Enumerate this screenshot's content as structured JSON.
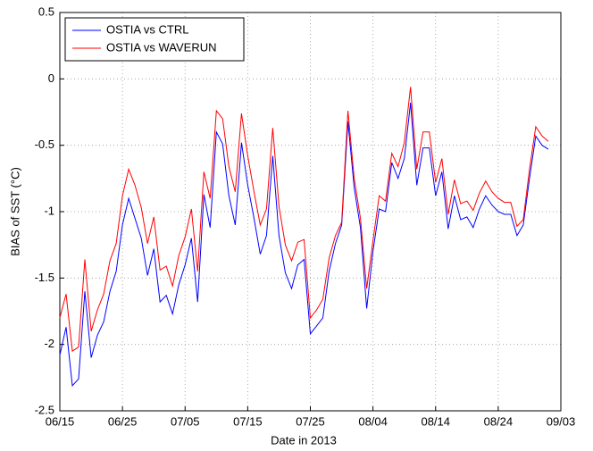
{
  "chart_data": {
    "type": "line",
    "x_label": "Date in 2013",
    "y_label": "BIAS of SST (°C)",
    "x": [
      "06/15",
      "06/16",
      "06/17",
      "06/18",
      "06/19",
      "06/20",
      "06/21",
      "06/22",
      "06/23",
      "06/24",
      "06/25",
      "06/26",
      "06/27",
      "06/28",
      "06/29",
      "06/30",
      "07/01",
      "07/02",
      "07/03",
      "07/04",
      "07/05",
      "07/06",
      "07/07",
      "07/08",
      "07/09",
      "07/10",
      "07/11",
      "07/12",
      "07/13",
      "07/14",
      "07/15",
      "07/16",
      "07/17",
      "07/18",
      "07/19",
      "07/20",
      "07/21",
      "07/22",
      "07/23",
      "07/24",
      "07/25",
      "07/26",
      "07/27",
      "07/28",
      "07/29",
      "07/30",
      "07/31",
      "08/01",
      "08/02",
      "08/03",
      "08/04",
      "08/05",
      "08/06",
      "08/07",
      "08/08",
      "08/09",
      "08/10",
      "08/11",
      "08/12",
      "08/13",
      "08/14",
      "08/15",
      "08/16",
      "08/17",
      "08/18",
      "08/19",
      "08/20",
      "08/21",
      "08/22",
      "08/23",
      "08/24",
      "08/25",
      "08/26",
      "08/27",
      "08/28",
      "08/29",
      "08/30",
      "08/31",
      "09/01"
    ],
    "series": [
      {
        "name": "OSTIA vs CTRL",
        "color": "#0000ff",
        "values": [
          -2.08,
          -1.87,
          -2.31,
          -2.26,
          -1.6,
          -2.1,
          -1.93,
          -1.83,
          -1.6,
          -1.45,
          -1.1,
          -0.9,
          -1.05,
          -1.2,
          -1.48,
          -1.28,
          -1.68,
          -1.63,
          -1.77,
          -1.55,
          -1.4,
          -1.2,
          -1.68,
          -0.87,
          -1.12,
          -0.4,
          -0.49,
          -0.88,
          -1.1,
          -0.48,
          -0.8,
          -1.05,
          -1.32,
          -1.18,
          -0.58,
          -1.18,
          -1.46,
          -1.58,
          -1.4,
          -1.36,
          -1.92,
          -1.86,
          -1.8,
          -1.45,
          -1.24,
          -1.1,
          -0.32,
          -0.82,
          -1.12,
          -1.73,
          -1.3,
          -0.98,
          -1.0,
          -0.63,
          -0.75,
          -0.6,
          -0.18,
          -0.8,
          -0.52,
          -0.52,
          -0.88,
          -0.7,
          -1.13,
          -0.88,
          -1.06,
          -1.04,
          -1.12,
          -0.98,
          -0.88,
          -0.95,
          -1.0,
          -1.02,
          -1.02,
          -1.18,
          -1.1,
          -0.75,
          -0.43,
          -0.5,
          -0.53
        ]
      },
      {
        "name": "OSTIA vs WAVERUN",
        "color": "#ff0000",
        "values": [
          -1.8,
          -1.62,
          -2.05,
          -2.02,
          -1.36,
          -1.9,
          -1.74,
          -1.62,
          -1.37,
          -1.24,
          -0.88,
          -0.68,
          -0.8,
          -0.97,
          -1.24,
          -1.04,
          -1.44,
          -1.41,
          -1.56,
          -1.33,
          -1.19,
          -0.98,
          -1.45,
          -0.7,
          -0.9,
          -0.24,
          -0.3,
          -0.66,
          -0.85,
          -0.26,
          -0.58,
          -0.85,
          -1.1,
          -0.98,
          -0.37,
          -0.96,
          -1.25,
          -1.37,
          -1.23,
          -1.21,
          -1.8,
          -1.74,
          -1.66,
          -1.35,
          -1.18,
          -1.08,
          -0.24,
          -0.75,
          -1.05,
          -1.58,
          -1.22,
          -0.88,
          -0.92,
          -0.56,
          -0.66,
          -0.48,
          -0.06,
          -0.68,
          -0.4,
          -0.4,
          -0.78,
          -0.6,
          -1.02,
          -0.76,
          -0.94,
          -0.92,
          -0.99,
          -0.86,
          -0.77,
          -0.85,
          -0.9,
          -0.93,
          -0.93,
          -1.11,
          -1.06,
          -0.68,
          -0.36,
          -0.43,
          -0.47
        ]
      }
    ],
    "xlim": [
      "06/15",
      "09/03"
    ],
    "xticks": [
      "06/15",
      "06/25",
      "07/05",
      "07/15",
      "07/25",
      "08/04",
      "08/14",
      "08/24",
      "09/03"
    ],
    "ylim": [
      -2.5,
      0.5
    ],
    "yticks": [
      0.5,
      0,
      -0.5,
      -1,
      -1.5,
      -2,
      -2.5
    ],
    "grid": true,
    "legend": "upper left"
  }
}
